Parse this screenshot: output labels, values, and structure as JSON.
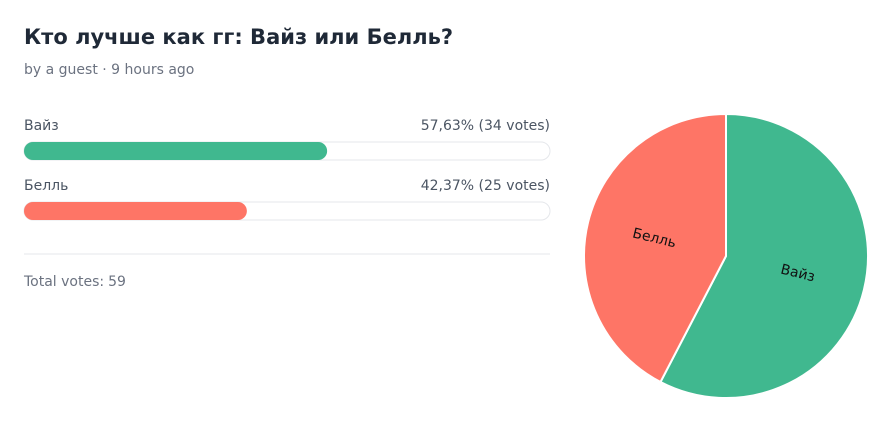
{
  "poll": {
    "title": "Кто лучше как гг: Вайз или Белль?",
    "byline": "by a guest · 9 hours ago",
    "options": [
      {
        "label": "Вайз",
        "percent": 57.63,
        "votes": 34,
        "result_label": "57,63% (34 votes)",
        "color": "#40b88f"
      },
      {
        "label": "Белль",
        "percent": 42.37,
        "votes": 25,
        "result_label": "42,37% (25 votes)",
        "color": "#fe7566"
      }
    ],
    "total": {
      "label": "Total votes:",
      "value": 59
    }
  }
}
